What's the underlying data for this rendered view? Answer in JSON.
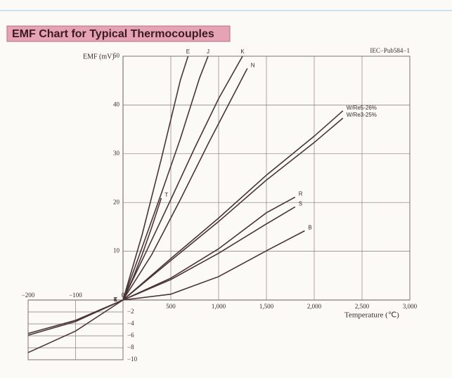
{
  "chart_data": [
    {
      "type": "line",
      "title": "EMF Chart for Typical Thermocouples",
      "y_label": "EMF (mV)",
      "x_label": "Temperature (℃)",
      "annotation": "IEC−Pub584−1",
      "xlim": [
        0,
        3000
      ],
      "ylim": [
        0,
        50
      ],
      "grid": true,
      "xticks": [
        500,
        {
          "value": 1000,
          "label": "1,000"
        },
        {
          "value": 1500,
          "label": "1,500"
        },
        {
          "value": 2000,
          "label": "2,000"
        },
        {
          "value": 2500,
          "label": "2,500"
        },
        {
          "value": 3000,
          "label": "3,000"
        }
      ],
      "yticks": [
        10,
        20,
        30,
        40,
        50
      ],
      "series": [
        {
          "name": "E",
          "color": "#4a3434",
          "x": [
            0,
            200,
            400,
            600,
            680
          ],
          "values": [
            0,
            13.4,
            28.9,
            45.1,
            50
          ]
        },
        {
          "name": "J",
          "color": "#4a3434",
          "x": [
            0,
            200,
            400,
            600,
            800,
            890
          ],
          "values": [
            0,
            10.8,
            21.8,
            33.1,
            45.5,
            50
          ]
        },
        {
          "name": "K",
          "color": "#4a3434",
          "x": [
            0,
            250,
            500,
            750,
            1000,
            1250
          ],
          "values": [
            0,
            10.2,
            20.6,
            31.2,
            41.3,
            50
          ]
        },
        {
          "name": "N",
          "color": "#4a3434",
          "x": [
            0,
            300,
            600,
            900,
            1300
          ],
          "values": [
            0,
            9.3,
            20.6,
            32.4,
            47.5
          ]
        },
        {
          "name": "T",
          "color": "#4a3434",
          "x": [
            0,
            100,
            200,
            300,
            400
          ],
          "values": [
            0,
            4.3,
            9.3,
            14.9,
            20.9
          ]
        },
        {
          "name": "W/Re5-26%",
          "color": "#4a3434",
          "x": [
            0,
            500,
            1000,
            1500,
            2000,
            2300
          ],
          "values": [
            0,
            8.5,
            16.8,
            25.6,
            33.6,
            38.8
          ]
        },
        {
          "name": "W/Re3-25%",
          "color": "#4a3434",
          "x": [
            0,
            500,
            1000,
            1500,
            2000,
            2300
          ],
          "values": [
            0,
            8.1,
            16.1,
            24.6,
            32.3,
            37.3
          ]
        },
        {
          "name": "R",
          "color": "#4a3434",
          "x": [
            0,
            500,
            1000,
            1500,
            1800
          ],
          "values": [
            0,
            4.5,
            10.5,
            17.9,
            21.1
          ]
        },
        {
          "name": "S",
          "color": "#4a3434",
          "x": [
            0,
            500,
            1000,
            1500,
            1800
          ],
          "values": [
            0,
            4.2,
            9.6,
            15.6,
            19.1
          ]
        },
        {
          "name": "B",
          "color": "#4a3434",
          "x": [
            0,
            500,
            1000,
            1500,
            1900
          ],
          "values": [
            0,
            1.2,
            4.8,
            10.1,
            14.2
          ]
        }
      ]
    },
    {
      "type": "line",
      "xlim": [
        -200,
        0
      ],
      "ylim": [
        -10,
        0
      ],
      "grid": true,
      "xticks": [
        {
          "value": -200,
          "label": "−200"
        },
        {
          "value": -100,
          "label": "−100"
        },
        0
      ],
      "yticks": [
        {
          "value": -2,
          "label": "−2"
        },
        {
          "value": -4,
          "label": "−4"
        },
        {
          "value": -6,
          "label": "−6"
        },
        {
          "value": -8,
          "label": "−8"
        },
        {
          "value": -10,
          "label": "−10"
        }
      ],
      "series": [
        {
          "name": "K",
          "color": "#4a3434",
          "x": [
            -200,
            -100,
            0
          ],
          "values": [
            -5.9,
            -3.6,
            0
          ]
        },
        {
          "name": "T",
          "color": "#4a3434",
          "x": [
            -200,
            -100,
            0
          ],
          "values": [
            -5.6,
            -3.4,
            0
          ]
        },
        {
          "name": "E",
          "color": "#4a3434",
          "x": [
            -200,
            -100,
            0
          ],
          "values": [
            -8.8,
            -5.2,
            0
          ]
        }
      ]
    }
  ]
}
